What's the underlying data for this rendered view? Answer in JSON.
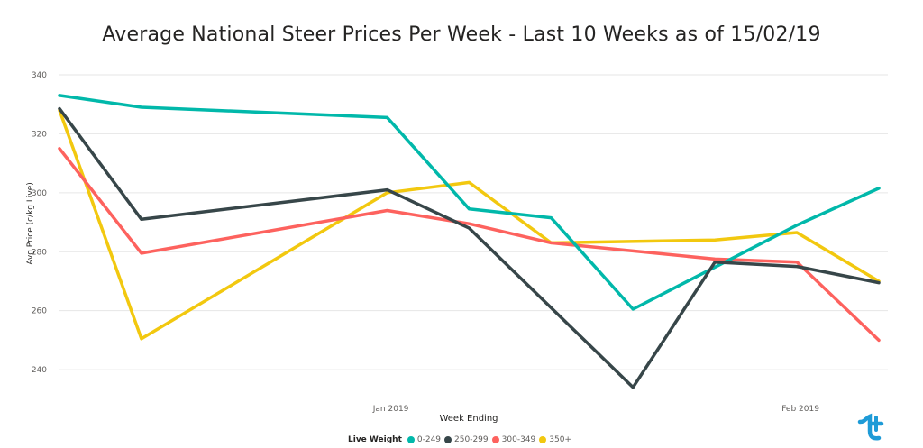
{
  "title": "Average National Steer Prices Per Week - Last 10 Weeks as of 15/02/19",
  "chart_data": {
    "type": "line",
    "title": "Average National Steer Prices Per Week - Last 10 Weeks as of 15/02/19",
    "xlabel": "Week Ending",
    "ylabel": "Avg Price (c/kg Live)",
    "x_tick_labels": [
      "Jan 2019",
      "Feb 2019"
    ],
    "x": [
      "2018-12-07",
      "2018-12-14",
      "2018-12-28",
      "2019-01-04",
      "2019-01-11",
      "2019-01-18",
      "2019-01-25",
      "2019-02-01",
      "2019-02-08",
      "2019-02-15"
    ],
    "y_ticks": [
      240,
      260,
      280,
      300,
      320,
      340
    ],
    "ylim": [
      233,
      340
    ],
    "grid": true,
    "legend": {
      "title": "Live Weight",
      "position": "bottom"
    },
    "series": [
      {
        "name": "0-249",
        "color": "#01B8AA",
        "values": [
          333,
          329,
          325.5,
          294.5,
          291.5,
          260.5,
          289,
          301.5
        ],
        "x": [
          "2018-12-07",
          "2018-12-14",
          "2019-01-04",
          "2019-01-11",
          "2019-01-18",
          "2019-01-25",
          "2019-02-08",
          "2019-02-15"
        ]
      },
      {
        "name": "250-299",
        "color": "#374649",
        "values": [
          328.5,
          291,
          301,
          288,
          234,
          276.5,
          275,
          269.5
        ],
        "x": [
          "2018-12-07",
          "2018-12-14",
          "2019-01-04",
          "2019-01-11",
          "2019-01-25",
          "2019-02-01",
          "2019-02-08",
          "2019-02-15"
        ]
      },
      {
        "name": "300-349",
        "color": "#FD625E",
        "values": [
          315,
          279.5,
          294,
          289.5,
          283,
          277.5,
          276.5,
          250
        ],
        "x": [
          "2018-12-07",
          "2018-12-14",
          "2019-01-04",
          "2019-01-11",
          "2019-01-18",
          "2019-02-01",
          "2019-02-08",
          "2019-02-15"
        ]
      },
      {
        "name": "350+",
        "color": "#F2C80F",
        "values": [
          328,
          250.5,
          300,
          303.5,
          283,
          284,
          286.5,
          270
        ],
        "x": [
          "2018-12-07",
          "2018-12-14",
          "2019-01-04",
          "2019-01-11",
          "2019-01-18",
          "2019-02-01",
          "2019-02-08",
          "2019-02-15"
        ]
      }
    ]
  },
  "logo": {
    "name": "brand-logo",
    "color": "#1E9BD7"
  }
}
